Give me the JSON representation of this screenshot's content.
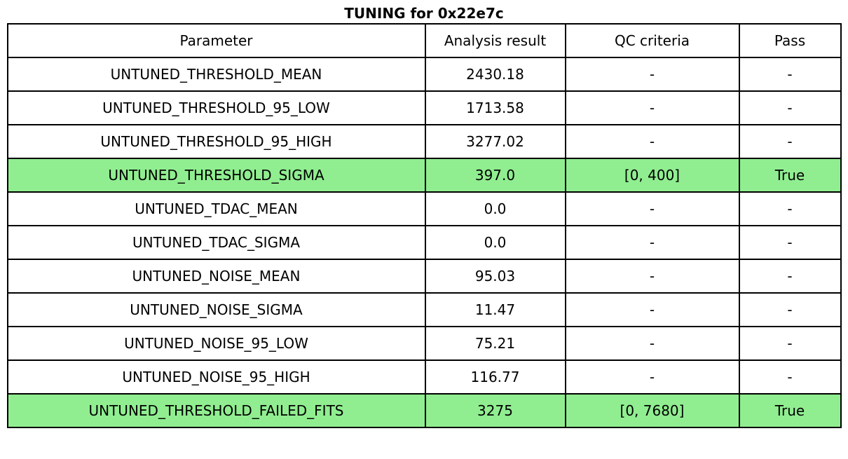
{
  "chart_data": {
    "type": "table",
    "title": "TUNING for 0x22e7c",
    "columns": [
      "Parameter",
      "Analysis result",
      "QC criteria",
      "Pass"
    ],
    "rows": [
      {
        "parameter": "UNTUNED_THRESHOLD_MEAN",
        "analysis_result": "2430.18",
        "qc_criteria": "-",
        "pass": "-",
        "highlight": false
      },
      {
        "parameter": "UNTUNED_THRESHOLD_95_LOW",
        "analysis_result": "1713.58",
        "qc_criteria": "-",
        "pass": "-",
        "highlight": false
      },
      {
        "parameter": "UNTUNED_THRESHOLD_95_HIGH",
        "analysis_result": "3277.02",
        "qc_criteria": "-",
        "pass": "-",
        "highlight": false
      },
      {
        "parameter": "UNTUNED_THRESHOLD_SIGMA",
        "analysis_result": "397.0",
        "qc_criteria": "[0, 400]",
        "pass": "True",
        "highlight": true
      },
      {
        "parameter": "UNTUNED_TDAC_MEAN",
        "analysis_result": "0.0",
        "qc_criteria": "-",
        "pass": "-",
        "highlight": false
      },
      {
        "parameter": "UNTUNED_TDAC_SIGMA",
        "analysis_result": "0.0",
        "qc_criteria": "-",
        "pass": "-",
        "highlight": false
      },
      {
        "parameter": "UNTUNED_NOISE_MEAN",
        "analysis_result": "95.03",
        "qc_criteria": "-",
        "pass": "-",
        "highlight": false
      },
      {
        "parameter": "UNTUNED_NOISE_SIGMA",
        "analysis_result": "11.47",
        "qc_criteria": "-",
        "pass": "-",
        "highlight": false
      },
      {
        "parameter": "UNTUNED_NOISE_95_LOW",
        "analysis_result": "75.21",
        "qc_criteria": "-",
        "pass": "-",
        "highlight": false
      },
      {
        "parameter": "UNTUNED_NOISE_95_HIGH",
        "analysis_result": "116.77",
        "qc_criteria": "-",
        "pass": "-",
        "highlight": false
      },
      {
        "parameter": "UNTUNED_THRESHOLD_FAILED_FITS",
        "analysis_result": "3275",
        "qc_criteria": "[0, 7680]",
        "pass": "True",
        "highlight": true
      }
    ],
    "layout": {
      "legend": "none",
      "grid": "all-cell-borders",
      "highlighted_rows": [
        3,
        10
      ]
    }
  },
  "colors": {
    "highlight_row_bg": "#90ee90",
    "border": "#000000",
    "background": "#ffffff",
    "text": "#000000"
  }
}
